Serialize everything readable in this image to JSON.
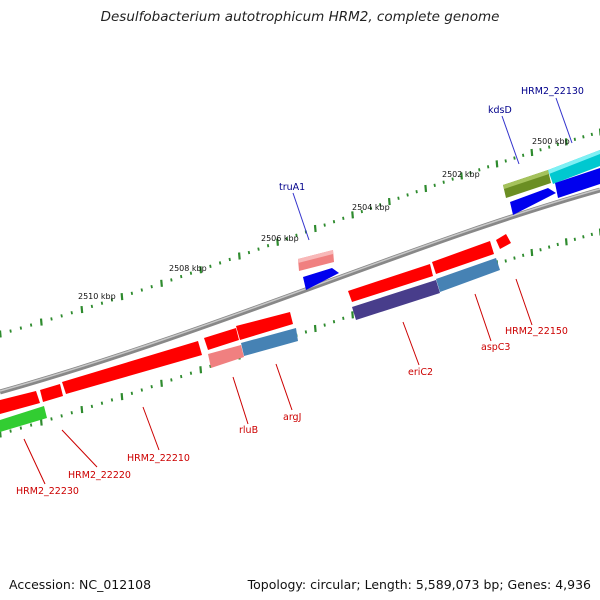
{
  "title": "Desulfobacterium autotrophicum HRM2, complete genome",
  "footer": {
    "accession": "Accession: NC_012108",
    "summary": "Topology: circular; Length: 5,589,073 bp; Genes: 4,936"
  },
  "colors": {
    "backbone": "#888888",
    "ticks": "#2e8b2e",
    "label_forward": "#00008b",
    "label_reverse": "#cc0000"
  },
  "scale_labels": [
    "2500 kbp",
    "2502 kbp",
    "2504 kbp",
    "2506 kbp",
    "2508 kbp",
    "2510 kbp"
  ],
  "features": [
    {
      "label": "HRM2_22130",
      "color": "#00c8d0",
      "strand": "forward"
    },
    {
      "label": "kdsD",
      "color": "#6b8e23",
      "strand": "forward"
    },
    {
      "label": "truA1",
      "color": "#f08080",
      "strand": "forward"
    },
    {
      "label": "HRM2_22150",
      "color": "#ff0000",
      "strand": "reverse"
    },
    {
      "label": "aspC3",
      "color": "#4682b4",
      "strand": "reverse"
    },
    {
      "label": "eriC2",
      "color": "#483d8b",
      "strand": "reverse"
    },
    {
      "label": "argJ",
      "color": "#4682b4",
      "strand": "reverse"
    },
    {
      "label": "rluB",
      "color": "#f08080",
      "strand": "reverse"
    },
    {
      "label": "HRM2_22210",
      "color": "#ff0000",
      "strand": "reverse"
    },
    {
      "label": "HRM2_22220",
      "color": "#ff0000",
      "strand": "reverse"
    },
    {
      "label": "HRM2_22230",
      "color": "#32cd32",
      "strand": "reverse"
    }
  ]
}
